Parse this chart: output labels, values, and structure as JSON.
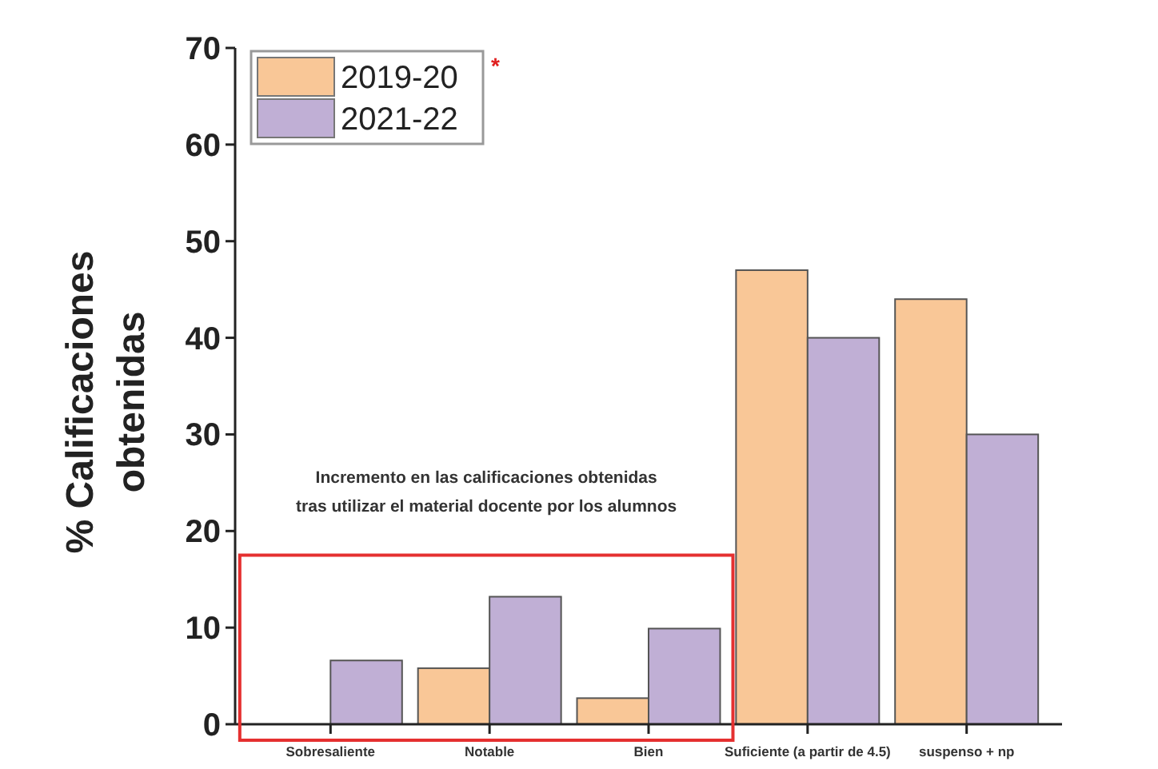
{
  "chart_data": {
    "type": "bar",
    "ylabel": "% Calificaciones obtenidas",
    "categories": [
      "Sobresaliente",
      "Notable",
      "Bien",
      "Suficiente (a partir de 4.5)",
      "suspenso + np"
    ],
    "series": [
      {
        "name": "2019-20",
        "color": "#f9c797",
        "values": [
          0,
          5.8,
          2.7,
          47,
          44
        ]
      },
      {
        "name": "2021-22",
        "color": "#c0afd5",
        "values": [
          6.6,
          13.2,
          9.9,
          40,
          30
        ]
      }
    ],
    "ylim": [
      0,
      70
    ],
    "yticks": [
      0,
      10,
      20,
      30,
      40,
      50,
      60,
      70
    ],
    "grid": false,
    "legend": "top left",
    "annotations": [
      "*",
      "Incremento en las calificaciones obtenidas tras utilizar el material docente por los alumnos"
    ]
  }
}
